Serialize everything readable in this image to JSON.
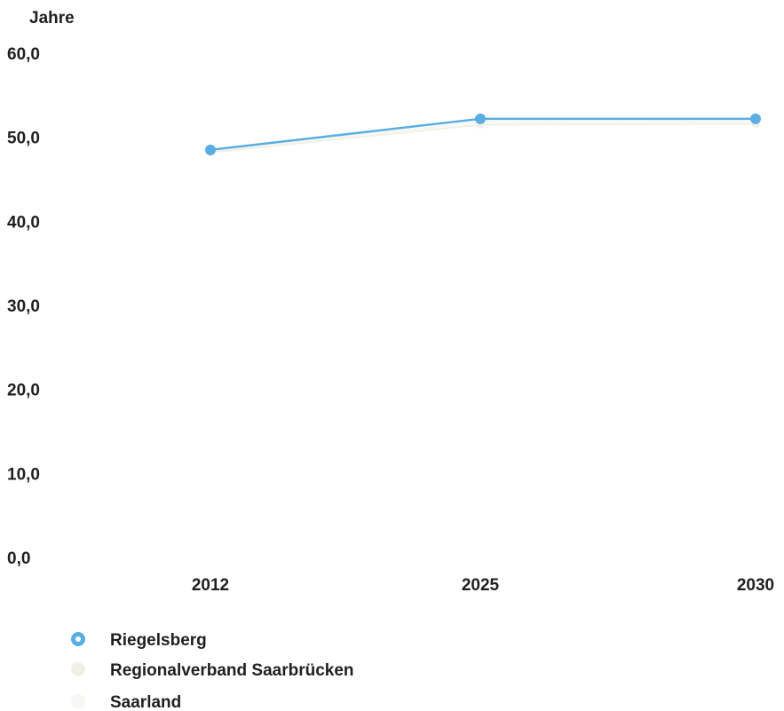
{
  "chart_data": {
    "type": "line",
    "ylabel": "Jahre",
    "ylim": [
      0,
      60
    ],
    "yticks": [
      "0,0",
      "10,0",
      "20,0",
      "30,0",
      "40,0",
      "50,0",
      "60,0"
    ],
    "yticks_values": [
      0,
      10,
      20,
      30,
      40,
      50,
      60
    ],
    "categories": [
      "2012",
      "2025",
      "2030"
    ],
    "grid": false,
    "legend_position": "bottom-left",
    "series": [
      {
        "name": "Riegelsberg",
        "color": "#5aaee3",
        "values": [
          48.5,
          52.2,
          52.2
        ]
      },
      {
        "name": "Regionalverband Saarbrücken",
        "color": "#f2f0e6",
        "values": [
          48.2,
          51.5,
          51.6
        ]
      },
      {
        "name": "Saarland",
        "color": "#f6f6f2",
        "values": [
          48.4,
          51.8,
          51.9
        ]
      }
    ]
  }
}
